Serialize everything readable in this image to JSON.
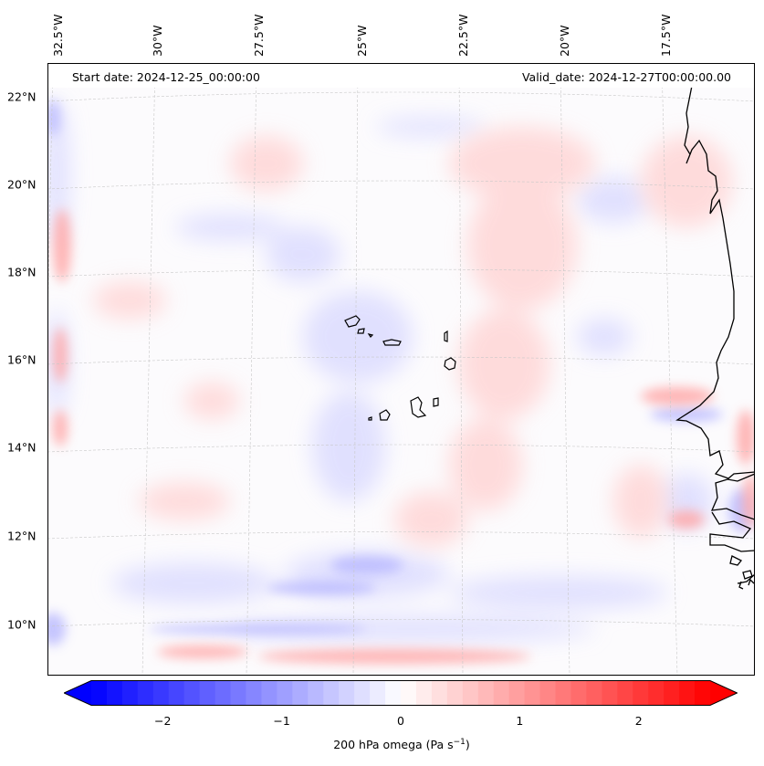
{
  "map": {
    "start_date": "Start date: 2024-12-25_00:00:00",
    "valid_date": "Valid_date: 2024-12-27T00:00:00.00",
    "lon_labels": [
      "32.5°W",
      "30°W",
      "27.5°W",
      "25°W",
      "22.5°W",
      "20°W",
      "17.5°W"
    ],
    "lat_labels": [
      "22°N",
      "20°N",
      "18°N",
      "16°N",
      "14°N",
      "12°N",
      "10°N"
    ],
    "variable": "200 hPa omega",
    "coastline_color": "#000000"
  },
  "colorbar": {
    "label_main": "200 hPa omega (Pa s",
    "label_exp": "−1",
    "label_close": ")",
    "ticks": [
      "−2",
      "−1",
      "0",
      "1",
      "2"
    ],
    "tick_values": [
      -2,
      -1,
      0,
      1,
      2
    ],
    "range": [
      -2.6,
      2.6
    ],
    "low_color": "#0000ff",
    "mid_color": "#ffffff",
    "high_color": "#ff0000"
  }
}
